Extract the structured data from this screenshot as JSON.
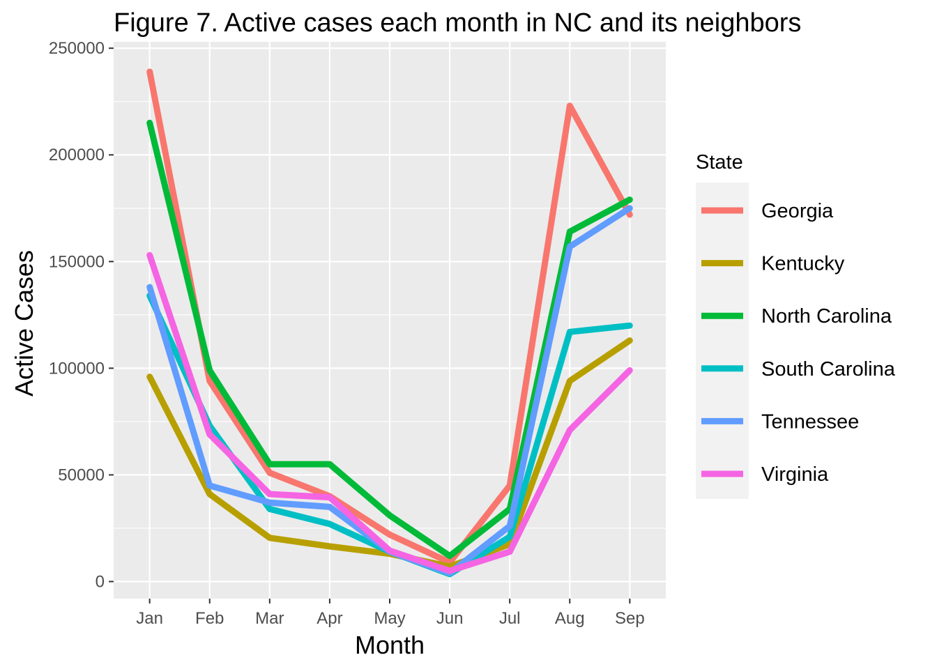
{
  "chart_data": {
    "type": "line",
    "title": "Figure 7. Active cases each month in NC and its neighbors",
    "xlabel": "Month",
    "ylabel": "Active Cases",
    "categories": [
      "Jan",
      "Feb",
      "Mar",
      "Apr",
      "May",
      "Jun",
      "Jul",
      "Aug",
      "Sep"
    ],
    "ylim": [
      -8000,
      253000
    ],
    "yticks": [
      0,
      50000,
      100000,
      150000,
      200000,
      250000
    ],
    "ytick_labels": [
      "0",
      "50000",
      "100000",
      "150000",
      "200000",
      "250000"
    ],
    "grid": true,
    "legend": {
      "title": "State",
      "position": "right"
    },
    "series": [
      {
        "name": "Georgia",
        "color": "#F8766D",
        "values": [
          239000,
          94000,
          51000,
          40000,
          22000,
          9000,
          45000,
          223000,
          172000
        ]
      },
      {
        "name": "Kentucky",
        "color": "#B79F00",
        "values": [
          96000,
          41000,
          20500,
          16500,
          13000,
          7000,
          17500,
          94000,
          113000
        ]
      },
      {
        "name": "North Carolina",
        "color": "#00BA38",
        "values": [
          215000,
          99000,
          55000,
          55000,
          31000,
          12000,
          34000,
          164000,
          179000
        ]
      },
      {
        "name": "South Carolina",
        "color": "#00BFC4",
        "values": [
          134000,
          73000,
          34000,
          27000,
          14000,
          3500,
          21000,
          117000,
          120000
        ]
      },
      {
        "name": "Tennessee",
        "color": "#619CFF",
        "values": [
          138000,
          45000,
          37000,
          35000,
          14000,
          4000,
          26000,
          157000,
          175000
        ]
      },
      {
        "name": "Virginia",
        "color": "#F564E3",
        "values": [
          153000,
          69000,
          41000,
          39500,
          14500,
          5000,
          14000,
          71000,
          99000
        ]
      }
    ]
  }
}
